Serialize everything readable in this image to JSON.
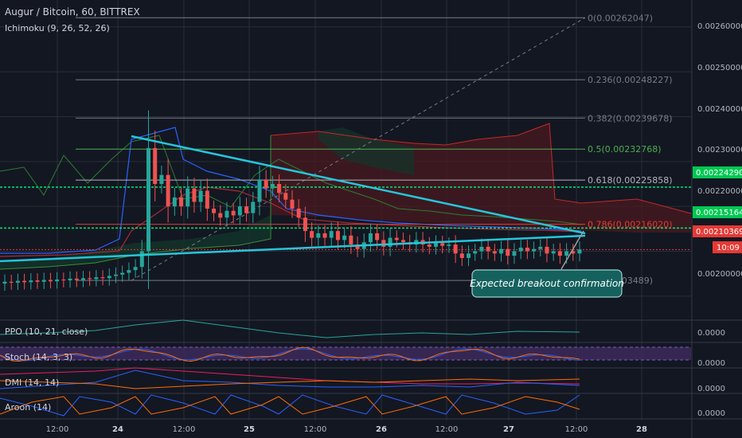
{
  "header": {
    "title": "Augur / Bitcoin, 60, BITTREX",
    "indicator": "Ichimoku (9, 26, 52, 26)"
  },
  "colors": {
    "background": "#131722",
    "grid": "#2a2e39",
    "up": "#26a69a",
    "down": "#ef5350",
    "trendline": "#26c6da",
    "fib_gray": "#787b86",
    "fib_green": "#4caf50",
    "fib_red": "#b71c1c",
    "level_green": "#00e676",
    "level_red": "#e53935",
    "cloud_red": "#4a1a1f",
    "cloud_green": "#13352b",
    "stoch_band": "#3d2a5a",
    "callout": "#15615e"
  },
  "chart_data": {
    "type": "candlestick",
    "y_range": [
      0.00195,
      0.00266
    ],
    "x_labels": [
      "12:00",
      "24",
      "12:00",
      "25",
      "12:00",
      "26",
      "12:00",
      "27",
      "12:00",
      "28"
    ],
    "y_ticks": [
      "0.00260000",
      "0.00250000",
      "0.00240000",
      "0.00230000",
      "0.00220000",
      "0.00200000"
    ],
    "price_labels": [
      {
        "value": 0.0022429,
        "text": "0.00224290",
        "color": "#00c853"
      },
      {
        "value": 0.00215164,
        "text": "0.00215164",
        "color": "#00c853"
      },
      {
        "value": 0.00210369,
        "text": "0.00210369",
        "color": "#e53935"
      }
    ],
    "countdown": "10:09",
    "fib_levels": [
      {
        "text": "0(0.00262047)",
        "value": 0.00262047,
        "color": "#787b86"
      },
      {
        "text": "0.236(0.00248227)",
        "value": 0.00248227,
        "color": "#787b86"
      },
      {
        "text": "0.382(0.00239678)",
        "value": 0.00239678,
        "color": "#787b86"
      },
      {
        "text": "0.5(0.00232768)",
        "value": 0.00232768,
        "color": "#4caf50"
      },
      {
        "text": "0.618(0.00225858)",
        "value": 0.00225858,
        "color": "#b2b5be"
      },
      {
        "text": "0.786(0.00216020)",
        "value": 0.0021602,
        "color": "#e53935"
      },
      {
        "text": "1(0.00203489)",
        "value": 0.00203489,
        "color": "#787b86"
      }
    ],
    "annotation": "Expected breakout confirmation",
    "sub_panes": [
      {
        "label": "PPO (10, 21, close)",
        "tick": "0.0000"
      },
      {
        "label": "Stoch (14, 3, 3)",
        "tick": "0.0000"
      },
      {
        "label": "DMI (14, 14)",
        "tick": "0.0000"
      },
      {
        "label": "Aroon (14)",
        "tick": "0.0000"
      }
    ],
    "candles": [
      {
        "o": 0.002028,
        "c": 0.002032
      },
      {
        "o": 0.002032,
        "c": 0.00203
      },
      {
        "o": 0.00203,
        "c": 0.002034
      },
      {
        "o": 0.002034,
        "c": 0.002031
      },
      {
        "o": 0.002031,
        "c": 0.002035
      },
      {
        "o": 0.002035,
        "c": 0.002032
      },
      {
        "o": 0.002032,
        "c": 0.002036
      },
      {
        "o": 0.002036,
        "c": 0.002033
      },
      {
        "o": 0.002033,
        "c": 0.002037
      },
      {
        "o": 0.002037,
        "c": 0.002035
      },
      {
        "o": 0.002035,
        "c": 0.002039
      },
      {
        "o": 0.002039,
        "c": 0.002036
      },
      {
        "o": 0.002036,
        "c": 0.00204
      },
      {
        "o": 0.00204,
        "c": 0.002038
      },
      {
        "o": 0.002038,
        "c": 0.002042
      },
      {
        "o": 0.002042,
        "c": 0.00204
      },
      {
        "o": 0.00204,
        "c": 0.002045
      },
      {
        "o": 0.002045,
        "c": 0.002048
      },
      {
        "o": 0.002048,
        "c": 0.002052
      },
      {
        "o": 0.002052,
        "c": 0.002058
      },
      {
        "o": 0.002058,
        "c": 0.002065
      },
      {
        "o": 0.002065,
        "c": 0.0021
      },
      {
        "o": 0.0021,
        "c": 0.00233
      },
      {
        "o": 0.00233,
        "c": 0.00225
      },
      {
        "o": 0.00225,
        "c": 0.00227
      },
      {
        "o": 0.00227,
        "c": 0.0022
      },
      {
        "o": 0.0022,
        "c": 0.00222
      },
      {
        "o": 0.00222,
        "c": 0.0022
      },
      {
        "o": 0.0022,
        "c": 0.00224
      },
      {
        "o": 0.00224,
        "c": 0.00221
      },
      {
        "o": 0.00221,
        "c": 0.002235
      },
      {
        "o": 0.002235,
        "c": 0.002195
      },
      {
        "o": 0.002195,
        "c": 0.002185
      },
      {
        "o": 0.002185,
        "c": 0.002175
      },
      {
        "o": 0.002175,
        "c": 0.00219
      },
      {
        "o": 0.00219,
        "c": 0.00218
      },
      {
        "o": 0.00218,
        "c": 0.0022
      },
      {
        "o": 0.0022,
        "c": 0.002185
      },
      {
        "o": 0.002185,
        "c": 0.00221
      },
      {
        "o": 0.00221,
        "c": 0.00226
      },
      {
        "o": 0.00226,
        "c": 0.00224
      },
      {
        "o": 0.00224,
        "c": 0.00225
      },
      {
        "o": 0.00225,
        "c": 0.00223
      },
      {
        "o": 0.00223,
        "c": 0.002215
      },
      {
        "o": 0.002215,
        "c": 0.002195
      },
      {
        "o": 0.002195,
        "c": 0.002175
      },
      {
        "o": 0.002175,
        "c": 0.002145
      },
      {
        "o": 0.002145,
        "c": 0.00213
      },
      {
        "o": 0.00213,
        "c": 0.00214
      },
      {
        "o": 0.00214,
        "c": 0.00213
      },
      {
        "o": 0.00213,
        "c": 0.002145
      },
      {
        "o": 0.002145,
        "c": 0.002125
      },
      {
        "o": 0.002125,
        "c": 0.002135
      },
      {
        "o": 0.002135,
        "c": 0.002115
      },
      {
        "o": 0.002115,
        "c": 0.002105
      },
      {
        "o": 0.002105,
        "c": 0.00212
      },
      {
        "o": 0.00212,
        "c": 0.00214
      },
      {
        "o": 0.00214,
        "c": 0.002125
      },
      {
        "o": 0.002125,
        "c": 0.00211
      },
      {
        "o": 0.00211,
        "c": 0.00213
      },
      {
        "o": 0.00213,
        "c": 0.002125
      },
      {
        "o": 0.002125,
        "c": 0.00212
      },
      {
        "o": 0.00212,
        "c": 0.002115
      },
      {
        "o": 0.002115,
        "c": 0.002125
      },
      {
        "o": 0.002125,
        "c": 0.002115
      },
      {
        "o": 0.002115,
        "c": 0.00211
      },
      {
        "o": 0.00211,
        "c": 0.002118
      },
      {
        "o": 0.002118,
        "c": 0.002112
      },
      {
        "o": 0.002112,
        "c": 0.002115
      },
      {
        "o": 0.002115,
        "c": 0.002095
      },
      {
        "o": 0.002095,
        "c": 0.002085
      },
      {
        "o": 0.002085,
        "c": 0.002095
      },
      {
        "o": 0.002095,
        "c": 0.0021
      },
      {
        "o": 0.0021,
        "c": 0.00211
      },
      {
        "o": 0.00211,
        "c": 0.0021
      },
      {
        "o": 0.0021,
        "c": 0.002095
      },
      {
        "o": 0.002095,
        "c": 0.002105
      },
      {
        "o": 0.002105,
        "c": 0.00209
      },
      {
        "o": 0.00209,
        "c": 0.0021
      },
      {
        "o": 0.0021,
        "c": 0.002108
      },
      {
        "o": 0.002108,
        "c": 0.0021
      },
      {
        "o": 0.0021,
        "c": 0.002105
      },
      {
        "o": 0.002105,
        "c": 0.00211
      },
      {
        "o": 0.00211,
        "c": 0.002095
      },
      {
        "o": 0.002095,
        "c": 0.0021
      },
      {
        "o": 0.0021,
        "c": 0.00209
      },
      {
        "o": 0.00209,
        "c": 0.0021
      },
      {
        "o": 0.0021,
        "c": 0.002095
      },
      {
        "o": 0.002095,
        "c": 0.002104
      }
    ]
  }
}
